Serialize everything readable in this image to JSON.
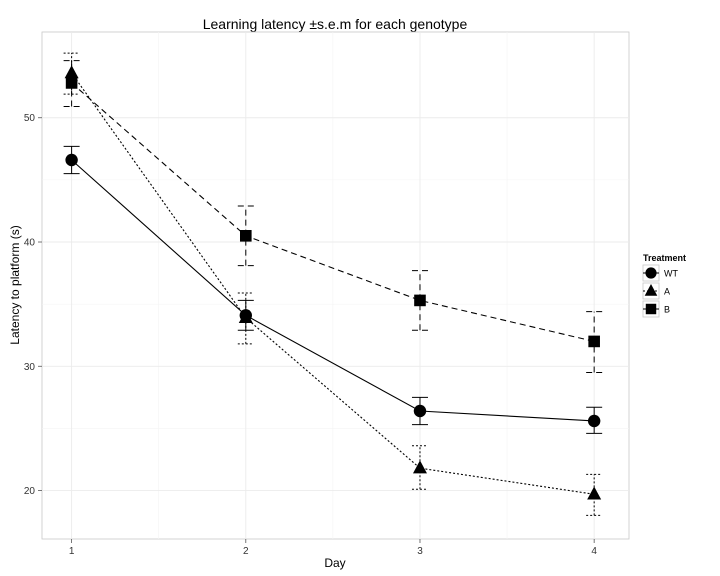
{
  "chart_data": {
    "type": "line",
    "title": "Learning latency ±s.e.m for each genotype",
    "xlabel": "Day",
    "ylabel": "Latency to platform (s)",
    "x": [
      1,
      2,
      3,
      4
    ],
    "xlim": [
      0.83,
      4.2
    ],
    "ylim": [
      16.1,
      56.9
    ],
    "xticks": [
      1,
      2,
      3,
      4
    ],
    "yticks": [
      20,
      30,
      40,
      50
    ],
    "grid": true,
    "legend": {
      "title": "Treatment",
      "position": "right"
    },
    "series": [
      {
        "name": "WT",
        "marker": "circle",
        "linestyle": "solid",
        "values": [
          46.6,
          34.1,
          26.4,
          25.6
        ],
        "err_low": [
          45.5,
          32.9,
          25.3,
          24.6
        ],
        "err_high": [
          47.7,
          35.3,
          27.5,
          26.7
        ]
      },
      {
        "name": "A",
        "marker": "triangle",
        "linestyle": "dotted",
        "values": [
          53.6,
          33.9,
          21.8,
          19.7
        ],
        "err_low": [
          51.9,
          31.8,
          20.1,
          18.0
        ],
        "err_high": [
          55.2,
          35.9,
          23.6,
          21.3
        ]
      },
      {
        "name": "B",
        "marker": "square",
        "linestyle": "dashed",
        "values": [
          52.8,
          40.5,
          35.3,
          32.0
        ],
        "err_low": [
          50.9,
          38.1,
          32.9,
          29.5
        ],
        "err_high": [
          54.6,
          42.9,
          37.7,
          34.4
        ]
      }
    ]
  }
}
